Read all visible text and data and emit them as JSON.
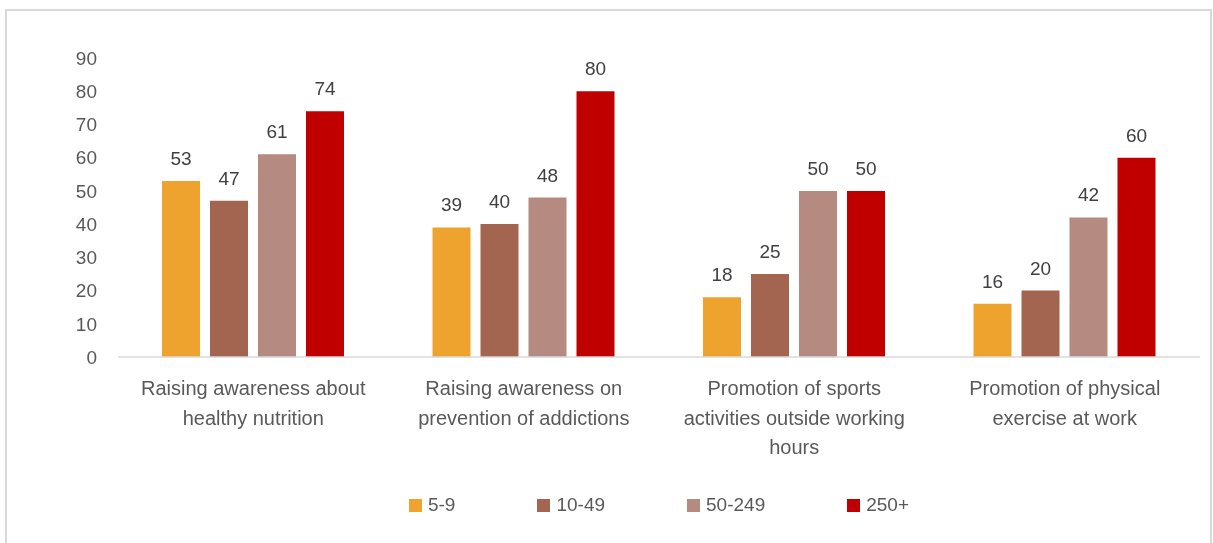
{
  "chart_data": {
    "type": "bar",
    "categories": [
      "Raising awareness about healthy nutrition",
      "Raising awareness on prevention of addictions",
      "Promotion of sports activities outside working hours",
      "Promotion of physical exercise at work"
    ],
    "series": [
      {
        "name": "5-9",
        "color": "#eea32f",
        "values": [
          53,
          39,
          18,
          16
        ]
      },
      {
        "name": "10-49",
        "color": "#a36450",
        "values": [
          47,
          40,
          25,
          20
        ]
      },
      {
        "name": "50-249",
        "color": "#b58a80",
        "values": [
          61,
          48,
          50,
          42
        ]
      },
      {
        "name": "250+",
        "color": "#c00000",
        "values": [
          74,
          80,
          50,
          60
        ]
      }
    ],
    "ylim": [
      0,
      90
    ],
    "yticks": [
      0,
      10,
      20,
      30,
      40,
      50,
      60,
      70,
      80,
      90
    ],
    "data_labels": true,
    "legend": "bottom"
  }
}
